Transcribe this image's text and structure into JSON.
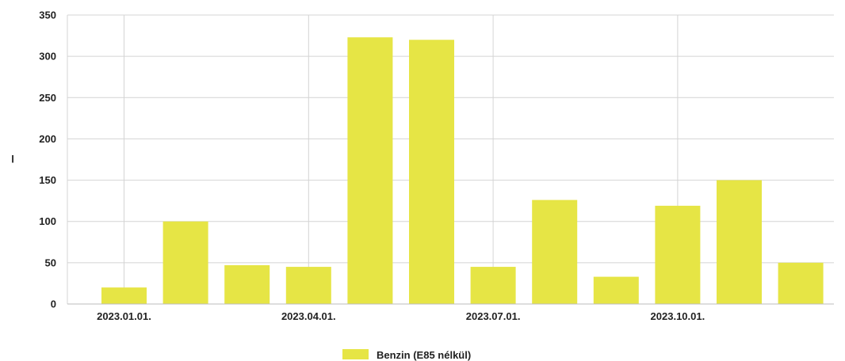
{
  "chart_data": {
    "type": "bar",
    "ylabel": "l",
    "ylim": [
      0,
      350
    ],
    "yticks": [
      0,
      50,
      100,
      150,
      200,
      250,
      300,
      350
    ],
    "x_tick_labels": [
      "2023.01.01.",
      "2023.04.01.",
      "2023.07.01.",
      "2023.10.01."
    ],
    "x_tick_label_month_index": [
      0,
      3,
      6,
      9
    ],
    "grid": true,
    "legend_position": "bottom",
    "series": [
      {
        "name": "Benzin (E85 nélkül)",
        "color": "#e6e545",
        "values": [
          20,
          100,
          47,
          45,
          323,
          320,
          45,
          126,
          33,
          119,
          150,
          50
        ]
      }
    ]
  }
}
